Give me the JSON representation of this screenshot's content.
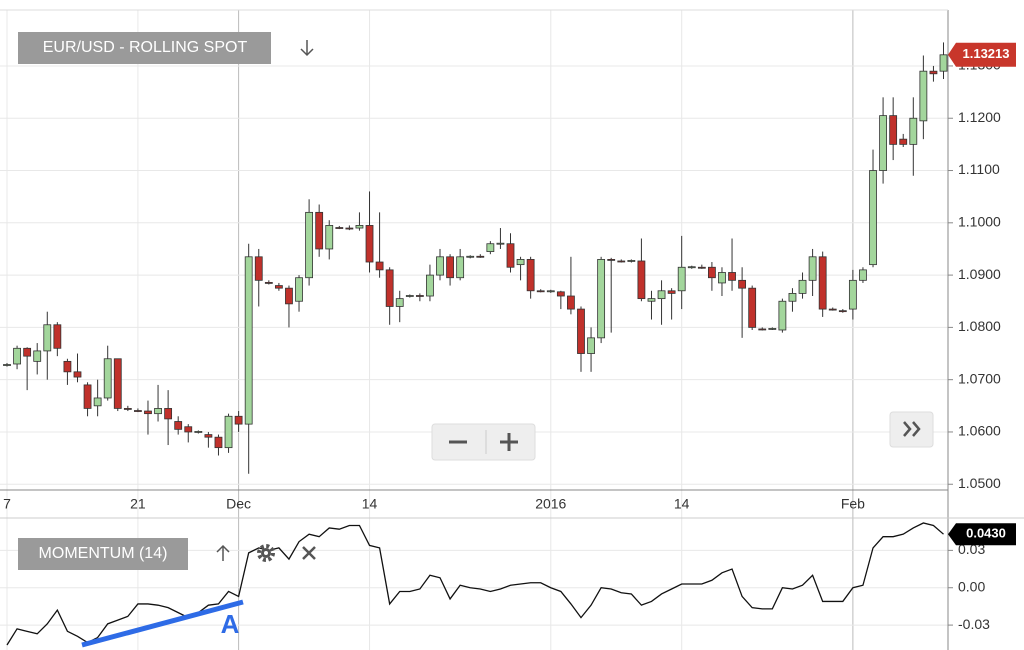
{
  "chart_data": [
    {
      "type": "candlestick",
      "title": "EUR/USD - ROLLING SPOT",
      "categories": [
        "7",
        null,
        null,
        null,
        null,
        null,
        null,
        null,
        null,
        null,
        null,
        null,
        null,
        "21",
        null,
        null,
        null,
        null,
        null,
        null,
        null,
        null,
        null,
        "Dec",
        null,
        null,
        null,
        null,
        null,
        null,
        null,
        null,
        null,
        null,
        null,
        null,
        "14",
        null,
        null,
        null,
        null,
        null,
        null,
        null,
        null,
        null,
        null,
        null,
        null,
        null,
        null,
        null,
        null,
        null,
        "2016",
        null,
        null,
        null,
        null,
        null,
        null,
        null,
        null,
        null,
        null,
        null,
        null,
        "14",
        null,
        null,
        null,
        null,
        null,
        null,
        null,
        null,
        null,
        null,
        null,
        null,
        null,
        null,
        null,
        null,
        "Feb",
        null,
        null,
        null,
        null,
        null,
        null,
        null,
        null,
        null
      ],
      "open": [
        1.0728,
        1.073,
        1.076,
        1.0735,
        1.0755,
        1.0805,
        1.0735,
        1.0715,
        1.069,
        1.065,
        1.0665,
        1.074,
        1.0645,
        1.0641,
        1.064,
        1.0635,
        1.0645,
        1.062,
        1.061,
        1.06,
        1.0595,
        1.059,
        1.057,
        1.063,
        1.0615,
        1.0935,
        1.0886,
        1.088,
        1.0875,
        1.085,
        1.0895,
        1.102,
        1.095,
        1.0991,
        1.099,
        1.099,
        1.0995,
        1.0925,
        1.091,
        1.084,
        1.086,
        1.0861,
        1.086,
        1.09,
        1.0935,
        1.0895,
        1.0935,
        1.0936,
        1.0945,
        1.096,
        1.096,
        1.092,
        1.093,
        1.087,
        1.0869,
        1.0868,
        1.086,
        1.0835,
        1.075,
        1.078,
        1.093,
        1.0927,
        1.0927,
        1.0927,
        1.085,
        1.0855,
        1.087,
        1.087,
        1.0915,
        1.0915,
        1.0915,
        1.0885,
        1.0905,
        1.089,
        1.0875,
        1.0797,
        1.0797,
        1.0795,
        1.085,
        1.0865,
        1.089,
        1.0935,
        1.0835,
        1.0832,
        1.0835,
        1.089,
        1.092,
        1.11,
        1.1205,
        1.116,
        1.115,
        1.1195,
        1.129,
        1.129
      ],
      "high": [
        1.0732,
        1.0765,
        1.0762,
        1.077,
        1.083,
        1.081,
        1.074,
        1.075,
        1.0695,
        1.07,
        1.0765,
        1.074,
        1.065,
        1.0645,
        1.066,
        1.069,
        1.068,
        1.063,
        1.0615,
        1.0603,
        1.06,
        1.0595,
        1.0635,
        1.064,
        1.096,
        1.095,
        1.089,
        1.0885,
        1.088,
        1.09,
        1.1045,
        1.1035,
        1.1005,
        1.0994,
        1.0995,
        1.102,
        1.106,
        1.102,
        1.0915,
        1.087,
        1.0863,
        1.0865,
        1.092,
        1.095,
        1.094,
        1.095,
        1.0938,
        1.094,
        1.0965,
        1.099,
        1.098,
        1.0935,
        1.0935,
        1.0873,
        1.0872,
        1.087,
        1.0935,
        1.084,
        1.08,
        1.0935,
        1.0933,
        1.093,
        1.093,
        1.097,
        1.087,
        1.089,
        1.0875,
        1.0975,
        1.0918,
        1.092,
        1.0925,
        1.0915,
        1.097,
        1.0915,
        1.088,
        1.08,
        1.08,
        1.0855,
        1.0875,
        1.0905,
        1.095,
        1.0945,
        1.0838,
        1.0835,
        1.091,
        1.0915,
        1.114,
        1.124,
        1.124,
        1.117,
        1.124,
        1.132,
        1.13,
        1.1345
      ],
      "low": [
        1.0725,
        1.072,
        1.068,
        1.071,
        1.07,
        1.0745,
        1.069,
        1.0695,
        1.063,
        1.063,
        1.066,
        1.064,
        1.064,
        1.0638,
        1.0595,
        1.062,
        1.0575,
        1.0595,
        1.058,
        1.0597,
        1.057,
        1.0555,
        1.056,
        1.06,
        1.052,
        1.084,
        1.0882,
        1.087,
        1.08,
        1.083,
        1.088,
        1.0935,
        1.093,
        1.0988,
        1.0986,
        1.0985,
        1.0905,
        1.0895,
        1.0805,
        1.081,
        1.0857,
        1.085,
        1.085,
        1.089,
        1.088,
        1.089,
        1.0932,
        1.0933,
        1.094,
        1.095,
        1.0905,
        1.089,
        1.0855,
        1.0867,
        1.0866,
        1.0835,
        1.0825,
        1.0715,
        1.0715,
        1.077,
        1.079,
        1.0924,
        1.0924,
        1.085,
        1.0815,
        1.0805,
        1.0815,
        1.0835,
        1.0912,
        1.0912,
        1.087,
        1.086,
        1.087,
        1.078,
        1.0795,
        1.0794,
        1.0795,
        1.079,
        1.083,
        1.0855,
        1.086,
        1.082,
        1.0832,
        1.0828,
        1.0815,
        1.0885,
        1.0915,
        1.1075,
        1.112,
        1.1145,
        1.109,
        1.116,
        1.127,
        1.1275
      ],
      "close": [
        1.0729,
        1.076,
        1.0745,
        1.0755,
        1.0805,
        1.076,
        1.0715,
        1.0705,
        1.0645,
        1.0665,
        1.074,
        1.0645,
        1.0644,
        1.064,
        1.0635,
        1.0645,
        1.0625,
        1.0605,
        1.06,
        1.0601,
        1.059,
        1.057,
        1.063,
        1.0615,
        1.0935,
        1.089,
        1.0885,
        1.0875,
        1.0845,
        1.0895,
        1.102,
        1.095,
        1.0995,
        1.099,
        1.0989,
        1.0995,
        1.0925,
        1.091,
        1.084,
        1.0855,
        1.0861,
        1.086,
        1.09,
        1.0935,
        1.0895,
        1.0935,
        1.0936,
        1.0935,
        1.096,
        1.0961,
        1.0915,
        1.093,
        1.087,
        1.0869,
        1.087,
        1.086,
        1.0835,
        1.075,
        1.078,
        1.093,
        1.0929,
        1.0926,
        1.0928,
        1.0855,
        1.0855,
        1.087,
        1.0865,
        1.0915,
        1.0916,
        1.0914,
        1.0895,
        1.0905,
        1.089,
        1.0875,
        1.08,
        1.0796,
        1.0798,
        1.085,
        1.0865,
        1.089,
        1.0935,
        1.0835,
        1.0834,
        1.0831,
        1.089,
        1.091,
        1.11,
        1.1205,
        1.115,
        1.115,
        1.12,
        1.129,
        1.1285,
        1.13213
      ],
      "up_color": "#a3d69c",
      "down_color": "#c0312b",
      "last_color": "#c8362b",
      "ylim": [
        1.0489,
        1.1407
      ],
      "yticks": [
        {
          "value": 1.05,
          "label": "1.0500"
        },
        {
          "value": 1.06,
          "label": "1.0600"
        },
        {
          "value": 1.07,
          "label": "1.0700"
        },
        {
          "value": 1.08,
          "label": "1.0800"
        },
        {
          "value": 1.09,
          "label": "1.0900"
        },
        {
          "value": 1.1,
          "label": "1.1000"
        },
        {
          "value": 1.11,
          "label": "1.1100"
        },
        {
          "value": 1.12,
          "label": "1.1200"
        },
        {
          "value": 1.13,
          "label": "1.1300"
        }
      ],
      "grid": true
    },
    {
      "type": "line",
      "title": "MOMENTUM (14)",
      "values": [
        -0.046,
        -0.033,
        -0.035,
        -0.037,
        -0.029,
        -0.018,
        -0.035,
        -0.039,
        -0.044,
        -0.04,
        -0.029,
        -0.026,
        -0.023,
        -0.013,
        -0.013,
        -0.014,
        -0.016,
        -0.02,
        -0.024,
        -0.02,
        -0.014,
        -0.013,
        -0.003,
        -0.007,
        0.028,
        0.032,
        0.03,
        0.032,
        0.023,
        0.037,
        0.043,
        0.041,
        0.048,
        0.047,
        0.05,
        0.05,
        0.034,
        0.032,
        -0.013,
        -0.003,
        -0.003,
        -0.001,
        0.01,
        0.008,
        -0.009,
        0.002,
        0.0,
        -0.001,
        -0.003,
        -0.001,
        0.002,
        0.003,
        0.004,
        0.004,
        0.0,
        -0.003,
        -0.013,
        -0.024,
        -0.014,
        0.0,
        -0.001,
        -0.004,
        -0.005,
        -0.014,
        -0.011,
        -0.005,
        -0.001,
        0.003,
        0.003,
        0.003,
        0.006,
        0.012,
        0.015,
        -0.007,
        -0.016,
        -0.017,
        -0.017,
        0.0,
        -0.001,
        0.002,
        0.01,
        -0.011,
        -0.011,
        -0.011,
        0.0,
        0.002,
        0.032,
        0.041,
        0.041,
        0.043,
        0.048,
        0.052,
        0.05,
        0.043
      ],
      "last_value_label": "0.0430",
      "color": "#111111",
      "last_color": "#000000",
      "ylim": [
        -0.05,
        0.056
      ],
      "yticks": [
        0.03,
        {
          "value": 0,
          "label": "0.00"
        },
        -0.03
      ],
      "grid": true,
      "annotations": [
        "A"
      ]
    }
  ]
}
